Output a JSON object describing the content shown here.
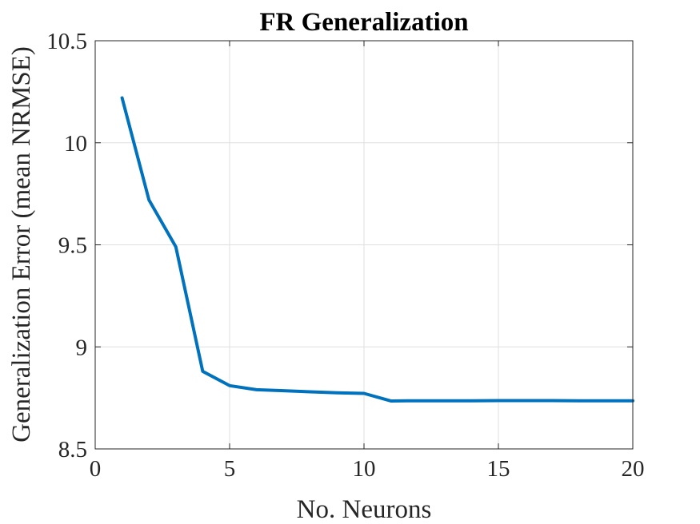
{
  "chart_data": {
    "type": "line",
    "title": "FR Generalization",
    "xlabel": "No. Neurons",
    "ylabel": "Generalization Error (mean NRMSE)",
    "xlim": [
      0,
      20
    ],
    "ylim": [
      8.5,
      10.5
    ],
    "xticks": [
      0,
      5,
      10,
      15,
      20
    ],
    "yticks": [
      8.5,
      9,
      9.5,
      10,
      10.5
    ],
    "xtick_labels": [
      "0",
      "5",
      "10",
      "15",
      "20"
    ],
    "ytick_labels": [
      "8.5",
      "9",
      "9.5",
      "10",
      "10.5"
    ],
    "grid": true,
    "legend": "none",
    "series": [
      {
        "color": "#0072bd",
        "x": [
          1,
          2,
          3,
          4,
          5,
          6,
          7,
          8,
          9,
          10,
          11,
          12,
          13,
          14,
          15,
          16,
          17,
          18,
          19,
          20
        ],
        "values": [
          10.22,
          9.72,
          9.49,
          8.88,
          8.81,
          8.79,
          8.785,
          8.78,
          8.775,
          8.772,
          8.735,
          8.736,
          8.736,
          8.736,
          8.737,
          8.737,
          8.737,
          8.736,
          8.736,
          8.736
        ]
      }
    ]
  }
}
